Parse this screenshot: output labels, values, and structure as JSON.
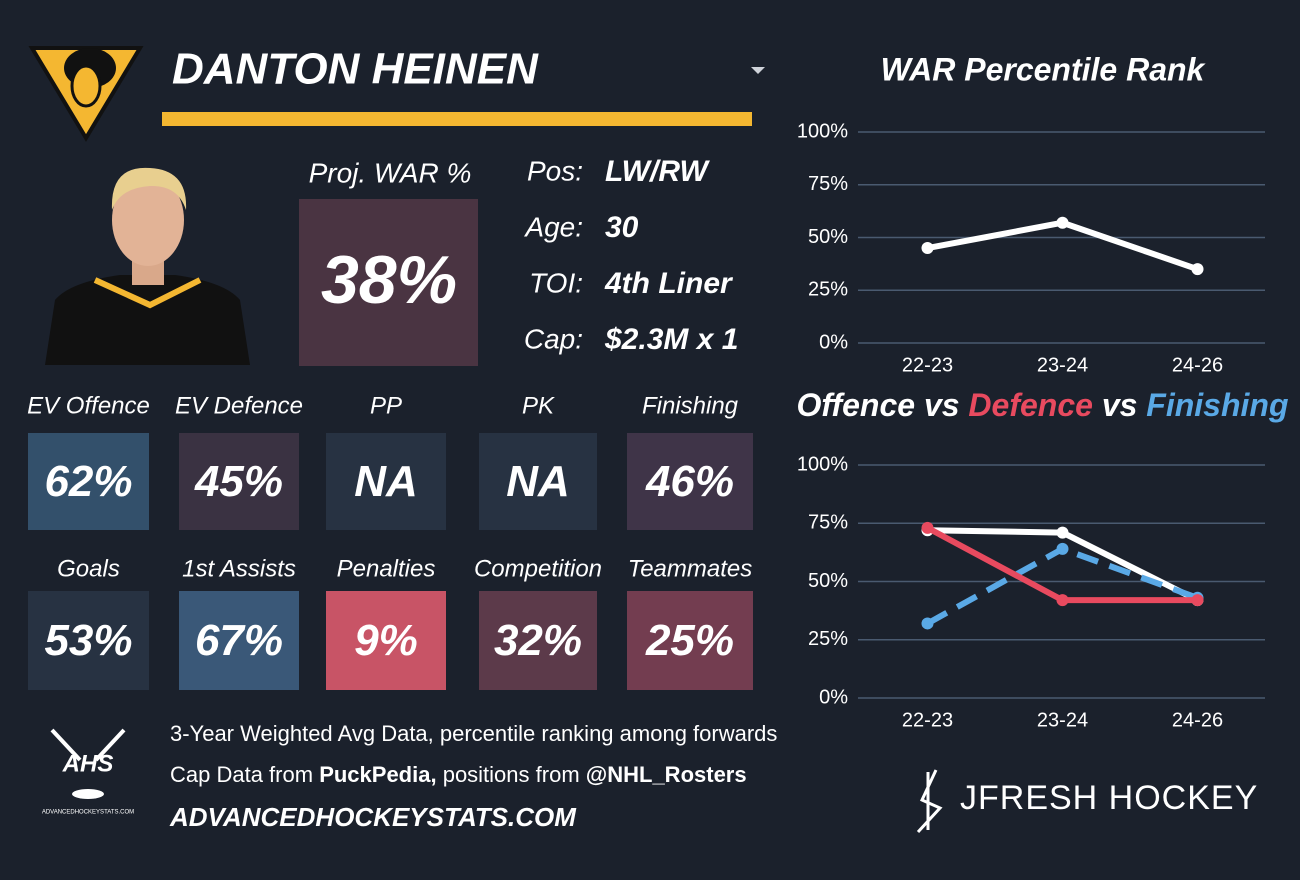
{
  "header": {
    "name": "DANTON HEINEN"
  },
  "projection": {
    "label": "Proj. WAR %",
    "value": "38%"
  },
  "info": [
    {
      "label": "Pos:",
      "value": "LW/RW"
    },
    {
      "label": "Age:",
      "value": "30"
    },
    {
      "label": "TOI:",
      "value": "4th Liner"
    },
    {
      "label": "Cap:",
      "value": "$2.3M x 1"
    }
  ],
  "tiles": [
    {
      "label": "EV Offence",
      "value": "62%",
      "color": "#33506b"
    },
    {
      "label": "EV Defence",
      "value": "45%",
      "color": "#3a3242"
    },
    {
      "label": "PP",
      "value": "NA",
      "color": "#273242"
    },
    {
      "label": "PK",
      "value": "NA",
      "color": "#273242"
    },
    {
      "label": "Finishing",
      "value": "46%",
      "color": "#3f3448"
    },
    {
      "label": "Goals",
      "value": "53%",
      "color": "#273242"
    },
    {
      "label": "1st Assists",
      "value": "67%",
      "color": "#3a5878"
    },
    {
      "label": "Penalties",
      "value": "9%",
      "color": "#c85466"
    },
    {
      "label": "Competition",
      "value": "32%",
      "color": "#5c3a4a"
    },
    {
      "label": "Teammates",
      "value": "25%",
      "color": "#733d50"
    }
  ],
  "footer": {
    "line1": "3-Year Weighted Avg Data, percentile ranking among forwards",
    "line2": [
      "Cap Data from",
      "PuckPedia,",
      "positions from",
      "@NHL_Rosters"
    ],
    "site": "ADVANCEDHOCKEYSTATS.COM"
  },
  "logos": {
    "ahs": "AHS",
    "ahs_caption": "ADVANCEDHOCKEYSTATS.COM",
    "brand": "JFRESH HOCKEY"
  },
  "chart_data": [
    {
      "type": "line",
      "title": "WAR Percentile Rank",
      "categories": [
        "22-23",
        "23-24",
        "24-26"
      ],
      "series": [
        {
          "name": "WAR",
          "color": "#ffffff",
          "values": [
            45,
            57,
            35
          ]
        }
      ],
      "ylim": [
        0,
        100
      ],
      "yticks": [
        {
          "value": 0,
          "label": "0%"
        },
        {
          "value": 25,
          "label": "25%"
        },
        {
          "value": 50,
          "label": "50%"
        },
        {
          "value": 75,
          "label": "75%"
        },
        {
          "value": 100,
          "label": "100%"
        }
      ],
      "grid": true
    },
    {
      "type": "line",
      "title": [
        {
          "text": "Offence",
          "color": "#ffffff"
        },
        {
          "text": "vs",
          "color": "#ffffff"
        },
        {
          "text": "Defence",
          "color": "#e84a5f"
        },
        {
          "text": "vs",
          "color": "#ffffff"
        },
        {
          "text": "Finishing",
          "color": "#5aa9e6"
        }
      ],
      "categories": [
        "22-23",
        "23-24",
        "24-26"
      ],
      "series": [
        {
          "name": "Offence",
          "color": "#ffffff",
          "values": [
            72,
            71,
            42
          ]
        },
        {
          "name": "Finishing",
          "color": "#5aa9e6",
          "values": [
            32,
            64,
            43
          ],
          "dashed": true
        },
        {
          "name": "Defence",
          "color": "#e84a5f",
          "values": [
            73,
            42,
            42
          ]
        }
      ],
      "ylim": [
        0,
        100
      ],
      "yticks": [
        {
          "value": 0,
          "label": "0%"
        },
        {
          "value": 25,
          "label": "25%"
        },
        {
          "value": 50,
          "label": "50%"
        },
        {
          "value": 75,
          "label": "75%"
        },
        {
          "value": 100,
          "label": "100%"
        }
      ],
      "grid": true
    }
  ]
}
